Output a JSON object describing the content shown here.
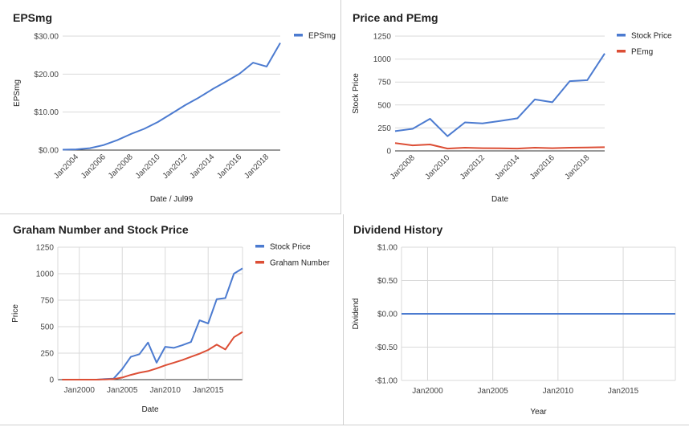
{
  "colors": {
    "blue": "#4c7bd0",
    "red": "#dc4e35",
    "grid": "#d9d9d9",
    "baseline": "#333333"
  },
  "chart_data": [
    {
      "type": "line",
      "title": "EPSmg",
      "xlabel": "Date / Jul99",
      "ylabel": "EPSmg",
      "x_ticks": [
        "Jan2004",
        "Jan2006",
        "Jan2008",
        "Jan2010",
        "Jan2012",
        "Jan2014",
        "Jan2016",
        "Jan2018"
      ],
      "y_ticks": [
        "$0.00",
        "$10.00",
        "$20.00",
        "$30.00"
      ],
      "xlim": [
        2003,
        2019
      ],
      "ylim": [
        0,
        30
      ],
      "legend": "top-right",
      "series": [
        {
          "name": "EPSmg",
          "color": "#4c7bd0",
          "x": [
            2003,
            2004,
            2005,
            2006,
            2007,
            2008,
            2009,
            2010,
            2011,
            2012,
            2013,
            2014,
            2015,
            2016,
            2017,
            2018,
            2019
          ],
          "y": [
            0.1,
            0.2,
            0.5,
            1.3,
            2.6,
            4.2,
            5.6,
            7.4,
            9.6,
            11.8,
            13.8,
            16.0,
            18.0,
            20.1,
            23.0,
            22.0,
            28.2
          ]
        }
      ]
    },
    {
      "type": "line",
      "title": "Price and PEmg",
      "xlabel": "Date",
      "ylabel": "Stock Price",
      "x_ticks": [
        "Jan2008",
        "Jan2010",
        "Jan2012",
        "Jan2014",
        "Jan2016",
        "Jan2018"
      ],
      "y_ticks": [
        "0",
        "250",
        "500",
        "750",
        "1000",
        "1250"
      ],
      "xlim": [
        2007,
        2019
      ],
      "ylim": [
        0,
        1250
      ],
      "legend": "top-right",
      "series": [
        {
          "name": "Stock Price",
          "color": "#4c7bd0",
          "x": [
            2007,
            2008,
            2009,
            2010,
            2011,
            2012,
            2013,
            2014,
            2015,
            2016,
            2017,
            2018,
            2019
          ],
          "y": [
            215,
            240,
            350,
            160,
            310,
            300,
            325,
            355,
            560,
            530,
            760,
            770,
            1060
          ]
        },
        {
          "name": "PEmg",
          "color": "#dc4e35",
          "x": [
            2007,
            2008,
            2009,
            2010,
            2011,
            2012,
            2013,
            2014,
            2015,
            2016,
            2017,
            2018,
            2019
          ],
          "y": [
            85,
            60,
            70,
            25,
            35,
            30,
            28,
            25,
            35,
            30,
            35,
            38,
            40
          ]
        }
      ]
    },
    {
      "type": "line",
      "title": "Graham Number and Stock Price",
      "xlabel": "Date",
      "ylabel": "Price",
      "x_ticks": [
        "Jan2000",
        "Jan2005",
        "Jan2010",
        "Jan2015"
      ],
      "y_ticks": [
        "0",
        "250",
        "500",
        "750",
        "1000",
        "1250"
      ],
      "xlim": [
        1997.5,
        2019
      ],
      "ylim": [
        0,
        1250
      ],
      "legend": "top-right",
      "series": [
        {
          "name": "Stock Price",
          "color": "#4c7bd0",
          "x": [
            1998,
            2000,
            2002,
            2003,
            2004,
            2005,
            2006,
            2007,
            2008,
            2009,
            2010,
            2011,
            2012,
            2013,
            2014,
            2015,
            2016,
            2017,
            2018,
            2019
          ],
          "y": [
            0,
            0,
            0,
            5,
            10,
            100,
            215,
            240,
            350,
            160,
            310,
            300,
            325,
            355,
            560,
            530,
            760,
            770,
            1000,
            1050
          ]
        },
        {
          "name": "Graham Number",
          "color": "#dc4e35",
          "x": [
            1998,
            2000,
            2002,
            2003,
            2004,
            2005,
            2006,
            2007,
            2008,
            2009,
            2010,
            2011,
            2012,
            2013,
            2014,
            2015,
            2016,
            2017,
            2018,
            2019
          ],
          "y": [
            0,
            0,
            0,
            2,
            5,
            20,
            45,
            65,
            80,
            105,
            135,
            160,
            185,
            215,
            245,
            280,
            330,
            285,
            400,
            450
          ]
        }
      ]
    },
    {
      "type": "line",
      "title": "Dividend History",
      "xlabel": "Year",
      "ylabel": "Dividend",
      "x_ticks": [
        "Jan2000",
        "Jan2005",
        "Jan2010",
        "Jan2015"
      ],
      "y_ticks": [
        "-$1.00",
        "-$0.50",
        "$0.00",
        "$0.50",
        "$1.00"
      ],
      "xlim": [
        1998,
        2019
      ],
      "ylim": [
        -1,
        1
      ],
      "series": [
        {
          "color": "#4c7bd0",
          "x": [
            1998,
            2019
          ],
          "y": [
            0,
            0
          ]
        }
      ]
    }
  ]
}
